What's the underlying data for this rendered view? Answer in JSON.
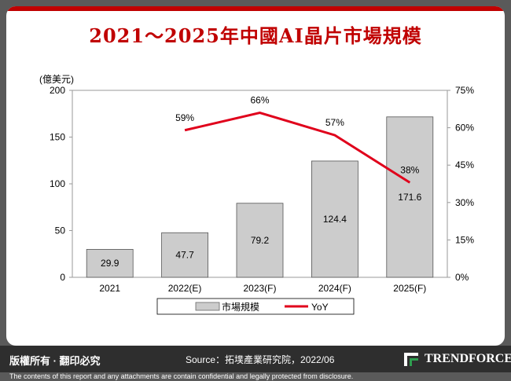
{
  "header": {
    "title": "2021～2025年中國AI晶片市場規模"
  },
  "chart_data": {
    "type": "bar",
    "title": "2021～2025年中國AI晶片市場規模",
    "y_unit_label": "(億美元)",
    "categories": [
      "2021",
      "2022(E)",
      "2023(F)",
      "2024(F)",
      "2025(F)"
    ],
    "series": [
      {
        "name": "市場規模",
        "type": "bar",
        "axis": "left",
        "values": [
          29.9,
          47.7,
          79.2,
          124.4,
          171.6
        ],
        "labels": [
          "29.9",
          "47.7",
          "79.2",
          "124.4",
          "171.6"
        ],
        "color": "#cccccc"
      },
      {
        "name": "YoY",
        "type": "line",
        "axis": "right",
        "values": [
          null,
          59,
          66,
          57,
          38
        ],
        "labels": [
          "",
          "59%",
          "66%",
          "57%",
          "38%"
        ],
        "color": "#e0001b"
      }
    ],
    "ylim": [
      0,
      200
    ],
    "yticks": [
      "0",
      "50",
      "100",
      "150",
      "200"
    ],
    "y2lim": [
      0,
      75
    ],
    "y2ticks": [
      "0%",
      "15%",
      "30%",
      "45%",
      "60%",
      "75%"
    ],
    "legend_position": "bottom",
    "grid": false
  },
  "footer": {
    "rights": "版權所有 · 翻印必究",
    "source": "Source：拓墣產業研究院，2022/06",
    "logo_text": "TRENDFORCE",
    "disclaimer": "The contents of this report and any attachments are contain confidential and legally protected from disclosure."
  },
  "colors": {
    "accent": "#c00000",
    "line": "#e0001b",
    "bar": "#cccccc",
    "footer_bg": "#2e2e2e"
  }
}
